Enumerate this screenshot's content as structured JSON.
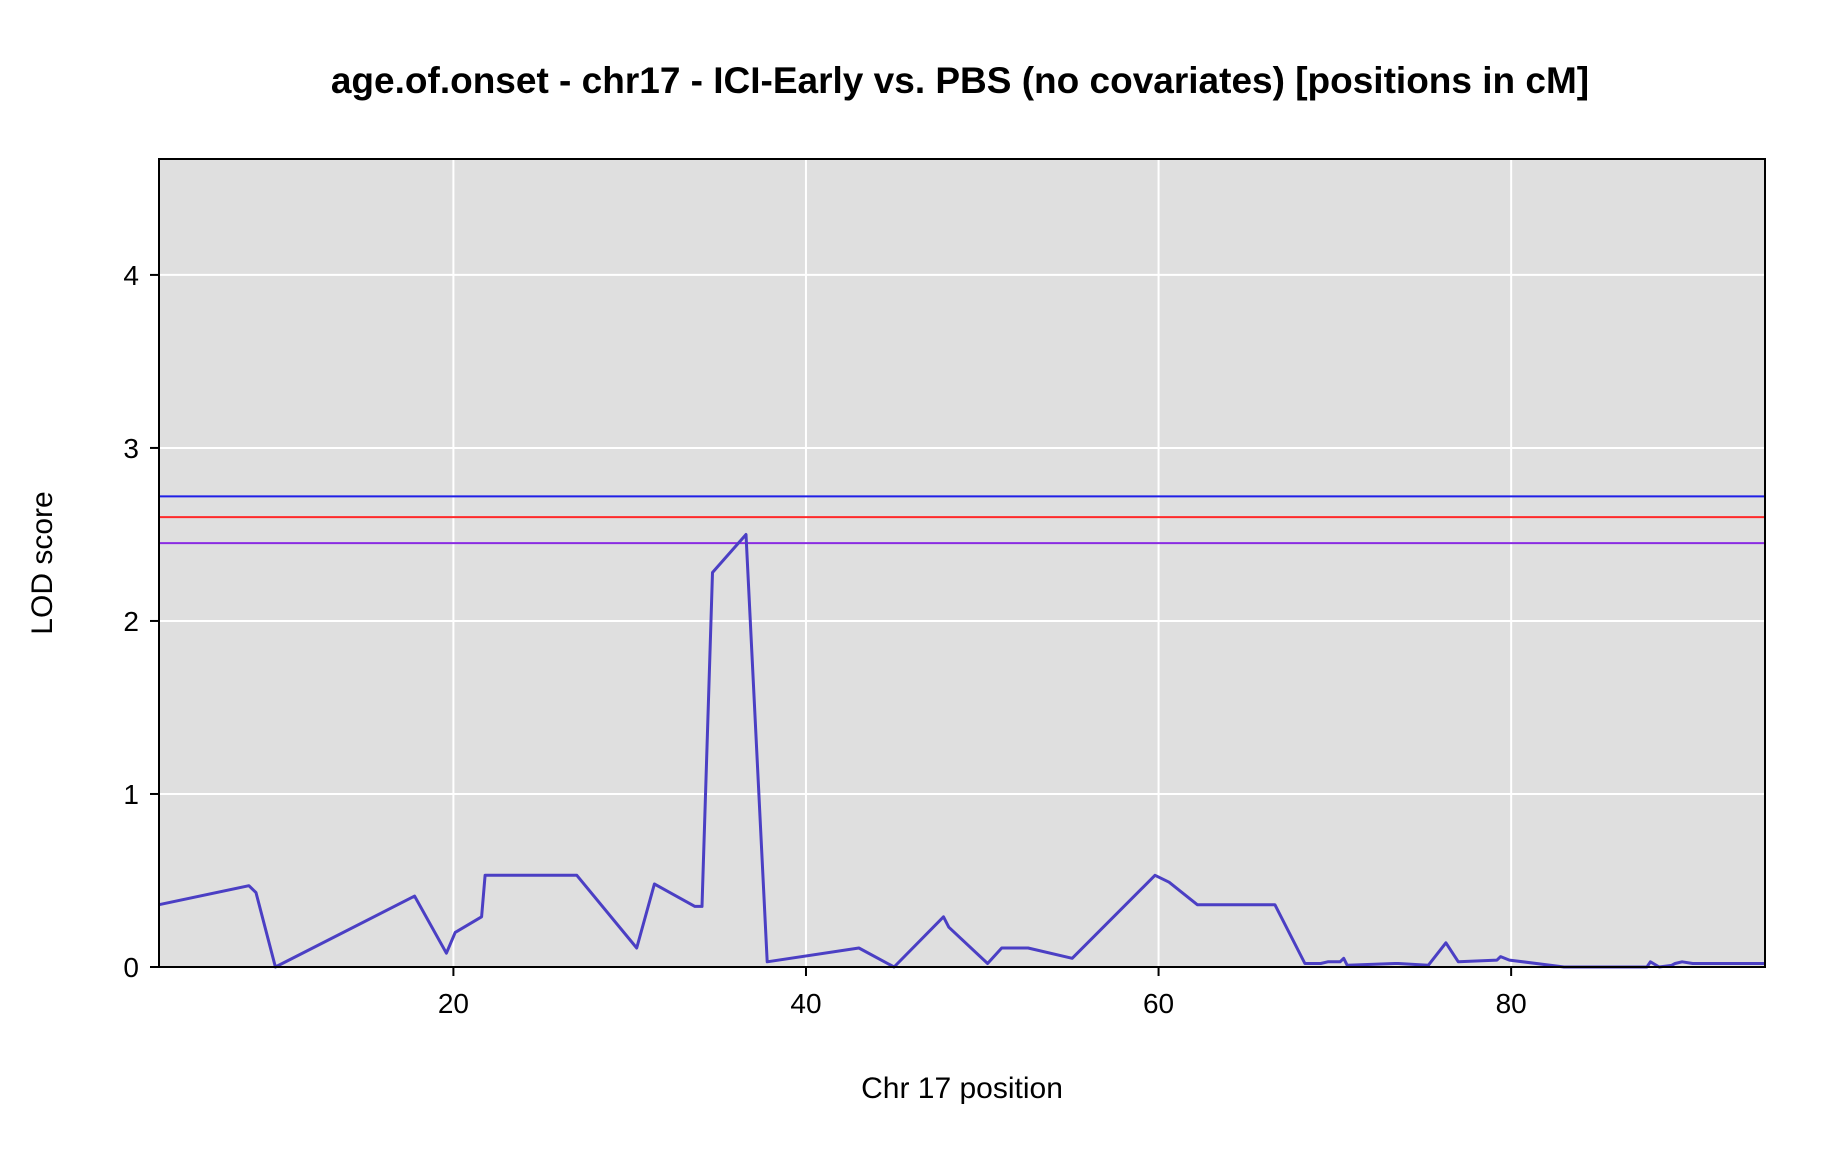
{
  "chart_data": {
    "type": "line",
    "title": "age.of.onset - chr17 - ICI-Early vs. PBS (no covariates) [positions in cM]",
    "xlabel": "Chr 17 position",
    "ylabel": "LOD score",
    "xlim": [
      3.3,
      94.4
    ],
    "ylim": [
      0,
      4.67
    ],
    "x_ticks": [
      20,
      40,
      60,
      80
    ],
    "y_ticks": [
      0,
      1,
      2,
      3,
      4
    ],
    "grid": true,
    "background": "#dfdfdf",
    "thresholds": [
      {
        "value": 2.72,
        "color": "#1f1fe6"
      },
      {
        "value": 2.6,
        "color": "#ff2a2a"
      },
      {
        "value": 2.45,
        "color": "#8a2be2"
      }
    ],
    "series": [
      {
        "color": "#4b3fc4",
        "x": [
          3.3,
          8.4,
          8.8,
          9.9,
          17.8,
          19.6,
          20.1,
          21.6,
          21.8,
          27.0,
          30.4,
          31.4,
          33.7,
          34.1,
          34.7,
          36.6,
          37.8,
          43.0,
          45.0,
          47.8,
          48.1,
          50.3,
          51.1,
          52.6,
          55.1,
          59.8,
          60.6,
          62.2,
          66.6,
          68.3,
          69.2,
          69.6,
          70.3,
          70.5,
          70.7,
          73.4,
          73.6,
          75.3,
          76.3,
          77.0,
          79.2,
          79.4,
          79.9,
          83.0,
          87.7,
          87.9,
          88.4,
          89.1,
          89.3,
          89.7,
          90.3,
          90.5,
          94.4
        ],
        "y": [
          0.36,
          0.47,
          0.43,
          0.0,
          0.41,
          0.08,
          0.2,
          0.29,
          0.53,
          0.53,
          0.11,
          0.48,
          0.35,
          0.35,
          2.28,
          2.5,
          0.03,
          0.11,
          0.0,
          0.29,
          0.23,
          0.02,
          0.11,
          0.11,
          0.05,
          0.53,
          0.49,
          0.36,
          0.36,
          0.02,
          0.02,
          0.03,
          0.03,
          0.05,
          0.01,
          0.02,
          0.02,
          0.01,
          0.14,
          0.03,
          0.04,
          0.06,
          0.04,
          0.0,
          0.0,
          0.03,
          0.0,
          0.01,
          0.02,
          0.03,
          0.02,
          0.02,
          0.02
        ]
      }
    ]
  }
}
